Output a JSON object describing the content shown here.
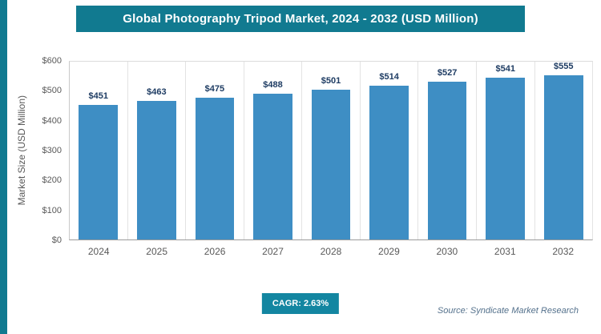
{
  "header": {
    "title": "Global Photography Tripod Market, 2024 - 2032 (USD Million)"
  },
  "chart_data": {
    "type": "bar",
    "title": "Global Photography Tripod Market, 2024 - 2032 (USD Million)",
    "categories": [
      "2024",
      "2025",
      "2026",
      "2027",
      "2028",
      "2029",
      "2030",
      "2031",
      "2032"
    ],
    "values": [
      451,
      463,
      475,
      488,
      501,
      514,
      527,
      541,
      555
    ],
    "bar_labels": [
      "$451",
      "$463",
      "$475",
      "$488",
      "$501",
      "$514",
      "$527",
      "$541",
      "$555"
    ],
    "xlabel": "",
    "ylabel": "Market Size (USD Million)",
    "ylim": [
      0,
      600
    ],
    "ytick_step": 100,
    "ytick_labels": [
      "$0",
      "$100",
      "$200",
      "$300",
      "$400",
      "$500",
      "$600"
    ],
    "legend": "none",
    "grid": "vertical-category-separators"
  },
  "footer": {
    "cagr_label": "CAGR: 2.63%",
    "source": "Source: Syndicate Market Research"
  },
  "colors": {
    "accent_teal": "#117a90",
    "badge_teal": "#1386a1",
    "bar_blue": "#3e8ec4",
    "bar_label_navy": "#1e3c63",
    "axis_text_gray": "#595959",
    "source_text": "#54718c"
  }
}
